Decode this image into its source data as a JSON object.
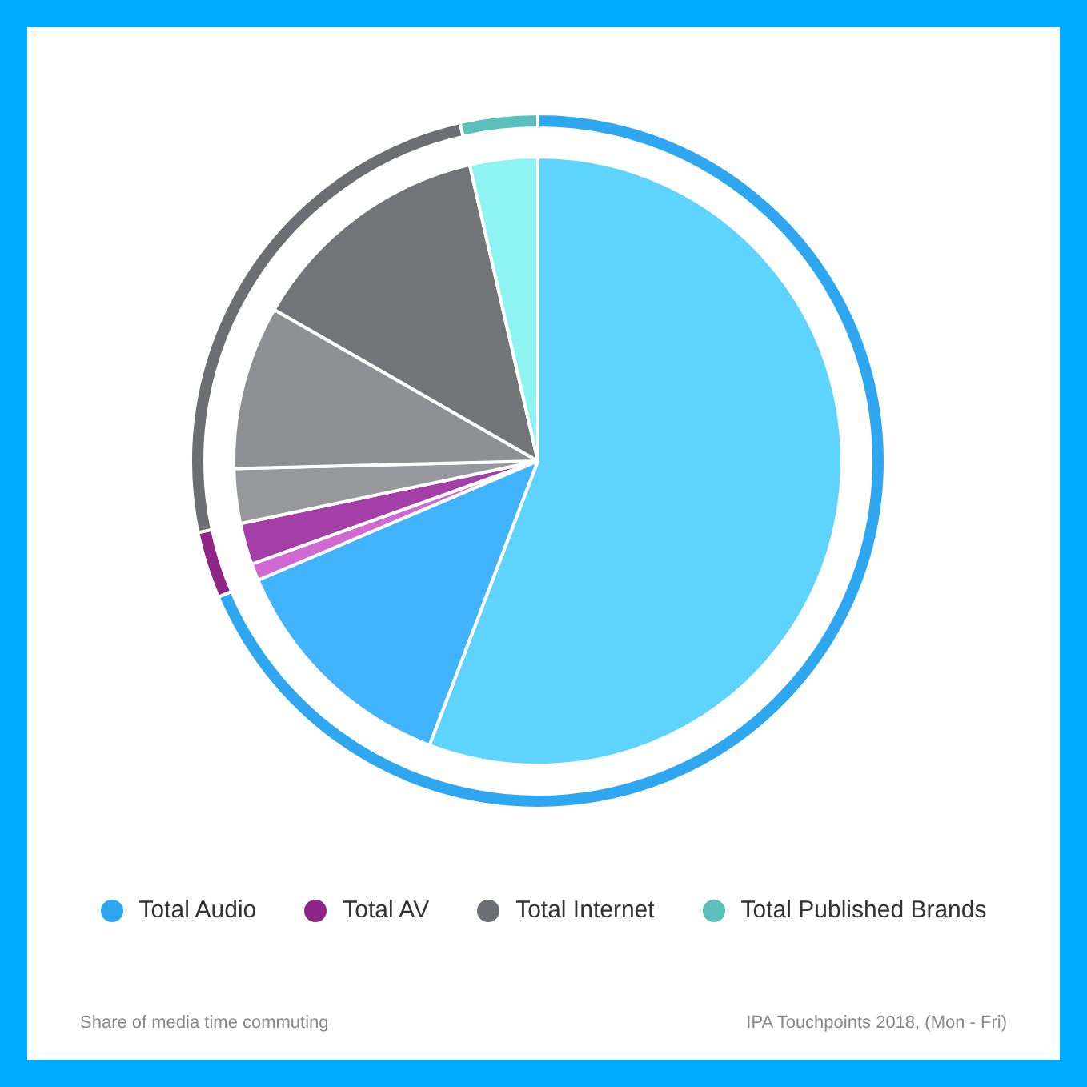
{
  "chart_data": [
    {
      "type": "donut",
      "categories": [
        "Total Audio",
        "Total AV",
        "Total Internet",
        "Total Published Brands"
      ],
      "legend": "bottom",
      "values": [
        68.6,
        3.1,
        24.7,
        3.6
      ],
      "colors": [
        "#2ea7f0",
        "#8e2587",
        "#6d6e72",
        "#5bc0bc"
      ],
      "annotations": [
        "Share of media time commuting",
        "IPA Touchpoints 2018, (Mon - Fri)"
      ]
    },
    {
      "type": "pie",
      "categories": [
        null,
        null,
        null,
        null,
        null,
        null,
        null,
        null
      ],
      "values": [
        55.8,
        12.8,
        0.9,
        2.2,
        2.9,
        8.7,
        13.1,
        3.6
      ],
      "colors": [
        "#5dd3fe",
        "#42b4fd",
        "#d06ad0",
        "#a33fa6",
        "#97989b",
        "#8f9094",
        "#737478",
        "#8ef4f2"
      ]
    }
  ]
}
